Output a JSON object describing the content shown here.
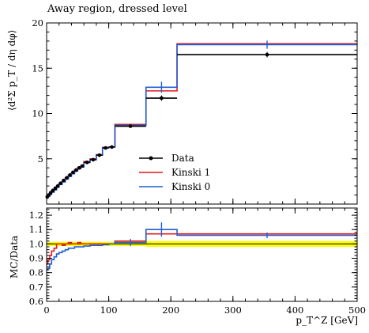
{
  "chart_data": [
    {
      "type": "line",
      "panel": "main",
      "title": "Away region, dressed level",
      "ylabel": "⟨d²Σ p_T / dη dφ⟩",
      "xlim": [
        0,
        500
      ],
      "ylim": [
        0,
        20
      ],
      "yticks": [
        5,
        10,
        15,
        20
      ],
      "legend": {
        "placement": "center-right",
        "entries": [
          "Data",
          "Kinski 1",
          "Kinski 0"
        ]
      },
      "bins": [
        [
          0,
          2
        ],
        [
          2,
          5
        ],
        [
          5,
          8
        ],
        [
          8,
          12
        ],
        [
          12,
          16
        ],
        [
          16,
          20
        ],
        [
          20,
          25
        ],
        [
          25,
          30
        ],
        [
          30,
          35
        ],
        [
          35,
          40
        ],
        [
          40,
          45
        ],
        [
          45,
          50
        ],
        [
          50,
          55
        ],
        [
          55,
          60
        ],
        [
          60,
          70
        ],
        [
          70,
          80
        ],
        [
          80,
          90
        ],
        [
          90,
          100
        ],
        [
          100,
          110
        ],
        [
          110,
          160
        ],
        [
          160,
          210
        ],
        [
          210,
          500
        ]
      ],
      "series": [
        {
          "name": "Data",
          "style": "points",
          "color": "#000000",
          "values": [
            0.8,
            1.0,
            1.25,
            1.5,
            1.75,
            2.0,
            2.3,
            2.6,
            2.9,
            3.2,
            3.5,
            3.75,
            4.0,
            4.2,
            4.6,
            4.9,
            5.4,
            6.2,
            6.3,
            8.6,
            11.7,
            16.5
          ],
          "y_err": [
            0.05,
            0.05,
            0.05,
            0.05,
            0.05,
            0.05,
            0.05,
            0.05,
            0.06,
            0.06,
            0.07,
            0.07,
            0.08,
            0.08,
            0.08,
            0.1,
            0.1,
            0.1,
            0.1,
            0.15,
            0.3,
            0.3
          ]
        },
        {
          "name": "Kinski 1",
          "style": "histogram",
          "color": "#e41a1c",
          "values": [
            0.7,
            0.95,
            1.15,
            1.4,
            1.7,
            2.0,
            2.3,
            2.6,
            2.9,
            3.2,
            3.5,
            3.8,
            4.05,
            4.25,
            4.7,
            5.0,
            5.45,
            6.25,
            6.3,
            8.8,
            12.5,
            17.7
          ]
        },
        {
          "name": "Kinski 0",
          "style": "histogram",
          "color": "#1f5fd6",
          "values": [
            0.65,
            0.85,
            1.05,
            1.3,
            1.55,
            1.85,
            2.15,
            2.45,
            2.75,
            3.05,
            3.35,
            3.65,
            3.9,
            4.1,
            4.6,
            4.9,
            5.4,
            6.2,
            6.3,
            8.7,
            12.9,
            17.6
          ],
          "marker_err": {
            "12": 0.1,
            "20": 0.6,
            "21": 0.45
          }
        }
      ]
    },
    {
      "type": "line",
      "panel": "ratio",
      "ylabel": "MC/Data",
      "xlabel": "p_T^Z [GeV]",
      "xlim": [
        0,
        500
      ],
      "ylim": [
        0.6,
        1.25
      ],
      "yticks": [
        0.6,
        0.7,
        0.8,
        0.9,
        1.0,
        1.1,
        1.2
      ],
      "xticks": [
        0,
        100,
        200,
        300,
        400,
        500
      ],
      "band": {
        "color": "#ffff00",
        "lo": [
          0.99,
          0.985,
          0.985,
          0.985,
          0.985,
          0.985,
          0.985,
          0.985,
          0.985,
          0.985,
          0.985,
          0.985,
          0.985,
          0.985,
          0.985,
          0.985,
          0.985,
          0.985,
          0.985,
          0.985,
          0.98,
          0.98
        ],
        "hi": [
          1.01,
          1.015,
          1.015,
          1.015,
          1.015,
          1.015,
          1.015,
          1.015,
          1.015,
          1.015,
          1.015,
          1.015,
          1.015,
          1.015,
          1.015,
          1.015,
          1.015,
          1.015,
          1.015,
          1.015,
          1.02,
          1.02
        ]
      },
      "series": [
        {
          "name": "Kinski 1",
          "color": "#e41a1c",
          "values": [
            0.86,
            0.89,
            0.92,
            0.95,
            0.97,
            1.0,
            1.0,
            0.99,
            1.0,
            1.01,
            1.0,
            1.0,
            1.01,
            1.0,
            1.0,
            1.0,
            1.0,
            1.0,
            1.0,
            1.02,
            1.07,
            1.07
          ]
        },
        {
          "name": "Kinski 0",
          "color": "#1f5fd6",
          "values": [
            0.82,
            0.83,
            0.86,
            0.89,
            0.91,
            0.93,
            0.94,
            0.95,
            0.96,
            0.97,
            0.97,
            0.98,
            0.98,
            0.98,
            0.985,
            0.99,
            0.99,
            0.995,
            1.0,
            1.01,
            1.1,
            1.06
          ],
          "marker_err": {
            "19": 0.025,
            "20": 0.05,
            "21": 0.02
          }
        }
      ]
    }
  ]
}
